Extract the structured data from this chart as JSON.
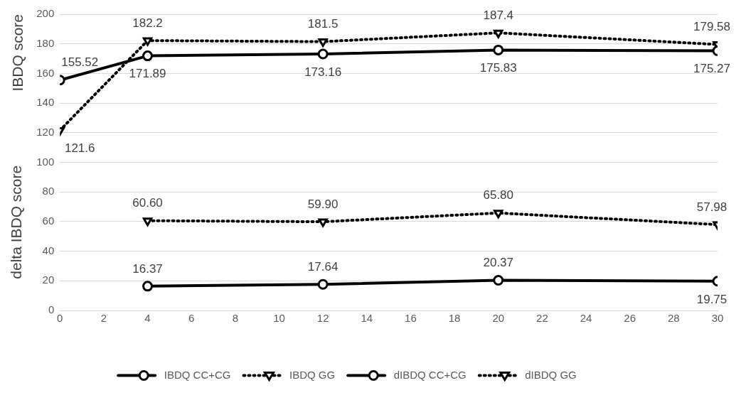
{
  "chart_data": {
    "type": "line",
    "ylabel": "IBDQ score",
    "annotations": [
      "delta IBDQ score"
    ],
    "xlim": [
      0,
      30
    ],
    "xticks": [
      0,
      2,
      4,
      6,
      8,
      10,
      12,
      14,
      16,
      18,
      20,
      22,
      24,
      26,
      28,
      30
    ],
    "ylim": [
      0,
      200
    ],
    "yticks": [
      0,
      20,
      40,
      60,
      80,
      100,
      120,
      140,
      160,
      180,
      200
    ],
    "grid": "y",
    "legend": "bottom",
    "series": [
      {
        "name": "IBDQ CC+CG",
        "color": "#000000",
        "marker": "circle",
        "line_style": "solid",
        "x": [
          0,
          4,
          12,
          20,
          30
        ],
        "values": [
          155.52,
          171.89,
          173.16,
          175.83,
          175.27
        ],
        "value_labels": [
          "155.52",
          "171.89",
          "173.16",
          "175.83",
          "175.27"
        ]
      },
      {
        "name": "IBDQ GG",
        "color": "#000000",
        "marker": "triangle",
        "line_style": "dotted",
        "x": [
          0,
          4,
          12,
          20,
          30
        ],
        "values": [
          121.6,
          182.2,
          181.5,
          187.4,
          179.58
        ],
        "value_labels": [
          "121.6",
          "182.2",
          "181.5",
          "187.4",
          "179.58"
        ]
      },
      {
        "name": "dIBDQ CC+CG",
        "color": "#000000",
        "marker": "circle",
        "line_style": "solid",
        "x": [
          4,
          12,
          20,
          30
        ],
        "values": [
          16.37,
          17.64,
          20.37,
          19.75
        ],
        "value_labels": [
          "16.37",
          "17.64",
          "20.37",
          "19.75"
        ]
      },
      {
        "name": "dIBDQ GG",
        "color": "#000000",
        "marker": "triangle",
        "line_style": "dotted",
        "x": [
          4,
          12,
          20,
          30
        ],
        "values": [
          60.6,
          59.9,
          65.8,
          57.98
        ],
        "value_labels": [
          "60.60",
          "59.90",
          "65.80",
          "57.98"
        ]
      }
    ]
  }
}
